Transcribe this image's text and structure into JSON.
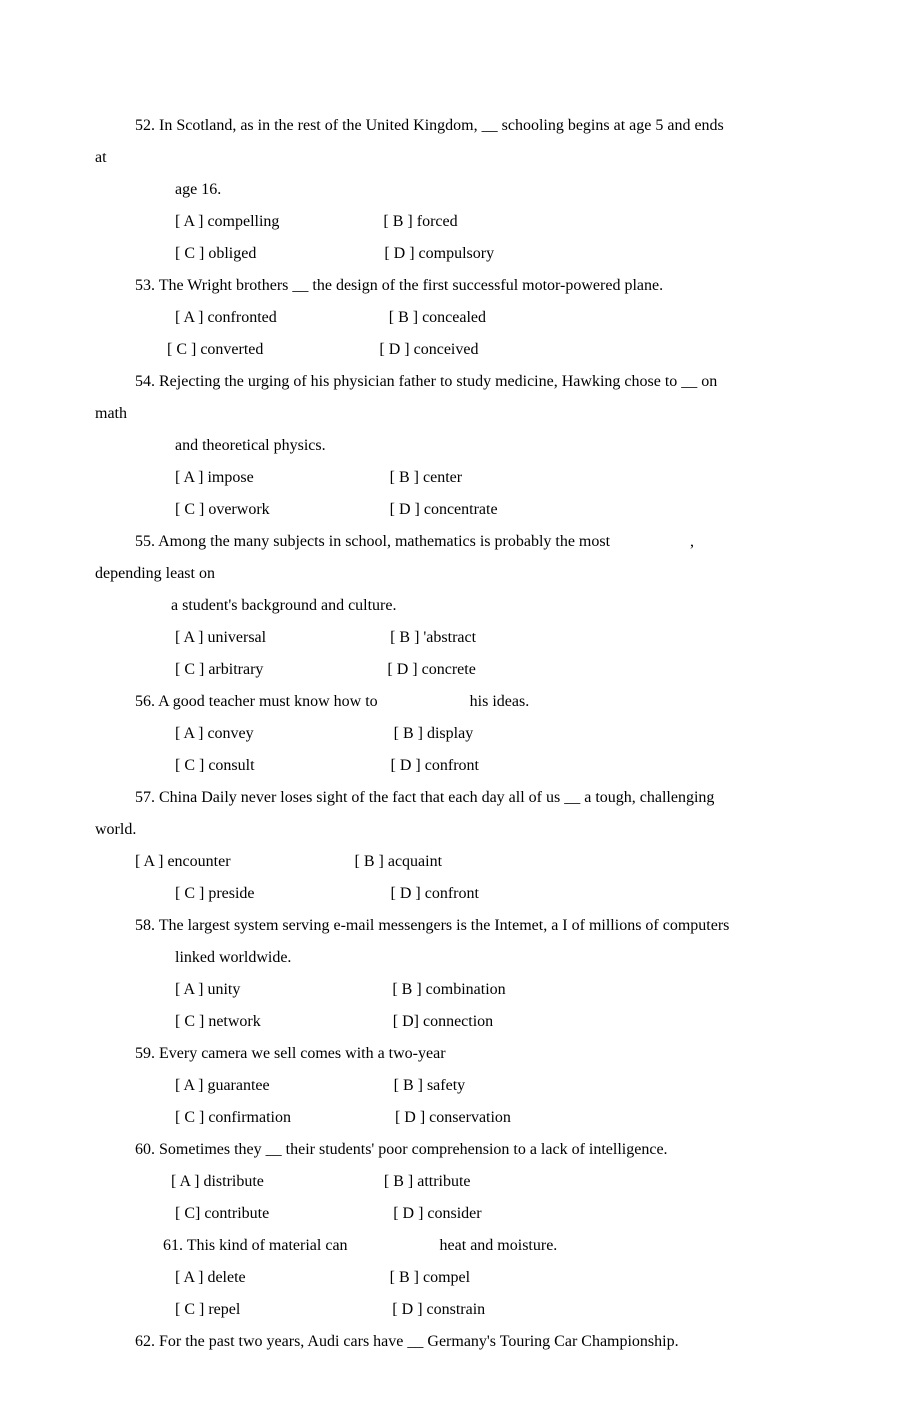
{
  "document": {
    "font_family": "Times New Roman",
    "font_size_pt": 12,
    "text_color": "#000000",
    "background_color": "#ffffff",
    "line_height": 2.0
  },
  "lines": [
    "          52. In Scotland, as in the rest of the United Kingdom, __ schooling begins at age 5 and ends",
    "at",
    "                    age 16.",
    "                    [ A ] compelling                          [ B ] forced",
    "                    [ C ] obliged                                [ D ] compulsory",
    "          53. The Wright brothers __ the design of the first successful motor-powered plane.",
    "                    [ A ] confronted                            [ B ] concealed",
    "                  [ C ] converted                             [ D ] conceived",
    "          54. Rejecting the urging of his physician father to study medicine, Hawking chose to __ on",
    "math",
    "                    and theoretical physics.",
    "                    [ A ] impose                                  [ B ] center",
    "                    [ C ] overwork                              [ D ] concentrate",
    "          55. Among the many subjects in school, mathematics is probably the most                    ,",
    "depending least on",
    "                   a student's background and culture.",
    "                    [ A ] universal                               [ B ] 'abstract",
    "                    [ C ] arbitrary                               [ D ] concrete",
    "          56. A good teacher must know how to                       his ideas.",
    "                    [ A ] convey                                   [ B ] display",
    "                    [ C ] consult                                  [ D ] confront",
    "          57. China Daily never loses sight of the fact that each day all of us __ a tough, challenging",
    "world.",
    "          [ A ] encounter                               [ B ] acquaint",
    "                    [ C ] preside                                  [ D ] confront",
    "          58. The largest system serving e-mail messengers is the Intemet, a I of millions of computers",
    "                    linked worldwide.",
    "                    [ A ] unity                                      [ B ] combination",
    "                    [ C ] network                                 [ D] connection",
    "          59. Every camera we sell comes with a two-year",
    "                    [ A ] guarantee                               [ B ] safety",
    "                    [ C ] confirmation                          [ D ] conservation",
    "          60. Sometimes they __ their students' poor comprehension to a lack of intelligence.",
    "                   [ A ] distribute                              [ B ] attribute",
    "                    [ C] contribute                               [ D ] consider",
    "",
    "                 61. This kind of material can                       heat and moisture.",
    "                    [ A ] delete                                    [ B ] compel",
    "                    [ C ] repel                                      [ D ] constrain",
    "          62. For the past two years, Audi cars have __ Germany's Touring Car Championship."
  ]
}
